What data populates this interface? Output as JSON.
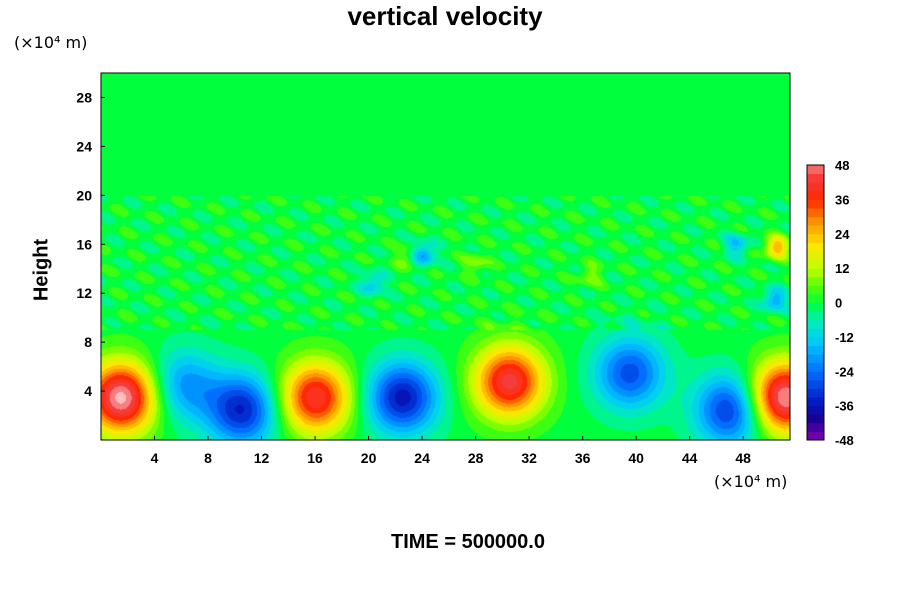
{
  "chart_data": {
    "type": "heatmap",
    "title": "vertical velocity",
    "xlabel": "",
    "ylabel": "Height",
    "x_unit": "(×10⁴ m)",
    "y_unit": "(×10⁴ m)",
    "xlim": [
      0,
      51.5
    ],
    "ylim": [
      0,
      30
    ],
    "x_ticks": [
      4,
      8,
      12,
      16,
      20,
      24,
      28,
      32,
      36,
      40,
      44,
      48
    ],
    "y_ticks": [
      4,
      8,
      12,
      16,
      20,
      24,
      28
    ],
    "colorbar": {
      "levels": [
        48,
        36,
        24,
        12,
        0,
        -12,
        -24,
        -36,
        -48
      ],
      "range": [
        -48,
        48
      ]
    },
    "features": [
      {
        "x": 1.5,
        "y": 3.5,
        "value": 52
      },
      {
        "x": 6.2,
        "y": 4.5,
        "value": -20
      },
      {
        "x": 10.5,
        "y": 2.5,
        "value": -34
      },
      {
        "x": 16.0,
        "y": 3.5,
        "value": 42
      },
      {
        "x": 22.5,
        "y": 3.5,
        "value": -36
      },
      {
        "x": 30.5,
        "y": 4.8,
        "value": 44
      },
      {
        "x": 39.5,
        "y": 5.5,
        "value": -28
      },
      {
        "x": 47.0,
        "y": 2.5,
        "value": -32
      },
      {
        "x": 51.0,
        "y": 3.5,
        "value": 52
      },
      {
        "x": 24.0,
        "y": 15.2,
        "value": -22
      },
      {
        "x": 20.3,
        "y": 12.8,
        "value": -14
      },
      {
        "x": 50.5,
        "y": 15.8,
        "value": 26
      },
      {
        "x": 50.3,
        "y": 11.5,
        "value": -18
      },
      {
        "x": 47.5,
        "y": 16.0,
        "value": -14
      },
      {
        "x": 23.0,
        "y": 15.0,
        "value": 10
      },
      {
        "x": 28.0,
        "y": 14.5,
        "value": 9
      },
      {
        "x": 36.5,
        "y": 13.5,
        "value": 8
      }
    ],
    "time_label": "TIME = 500000.0"
  }
}
